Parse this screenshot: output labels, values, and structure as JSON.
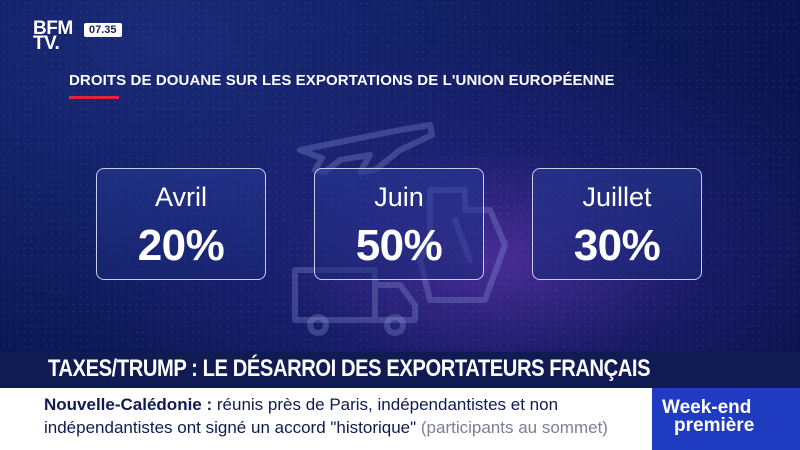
{
  "channel": {
    "logo_line1": "BFM",
    "logo_line2": "TV.",
    "time": "07.35"
  },
  "graphic": {
    "title": "DROITS DE DOUANE SUR LES EXPORTATIONS DE L'UNION EUROPÉENNE",
    "cards": [
      {
        "month": "Avril",
        "value": "20%"
      },
      {
        "month": "Juin",
        "value": "50%"
      },
      {
        "month": "Juillet",
        "value": "30%"
      }
    ],
    "background_icons": [
      "airplane-icon",
      "ship-icon",
      "truck-icon"
    ]
  },
  "banner": {
    "headline": "TAXES/TRUMP : LE DÉSARROI DES EXPORTATEURS FRANÇAIS",
    "ticker_tag": "Nouvelle-Calédonie :",
    "ticker_line1": "réunis près de Paris, indépendantistes et non",
    "ticker_line2": "indépendantistes ont signé un accord \"historique\"",
    "ticker_note": "(participants au sommet)",
    "show_line1": "Week-end",
    "show_line2": "première"
  },
  "colors": {
    "accent_red": "#e4253a",
    "background": "#0b1650",
    "show_blue": "#1f3bbf"
  }
}
